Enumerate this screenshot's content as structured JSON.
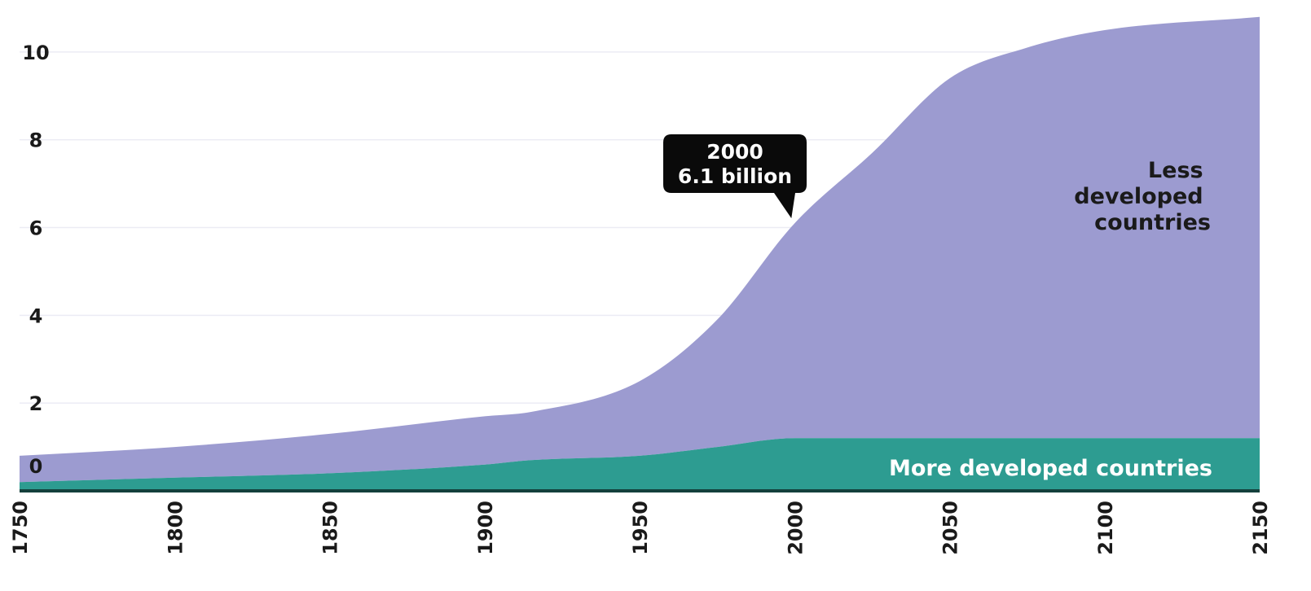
{
  "chart_data": {
    "type": "area",
    "stacked": true,
    "x": [
      1750,
      1800,
      1850,
      1900,
      1915,
      1950,
      1975,
      2000,
      2025,
      2050,
      2075,
      2100,
      2150
    ],
    "series": [
      {
        "name": "More developed countries",
        "values": [
          0.2,
          0.3,
          0.4,
          0.6,
          0.7,
          0.8,
          1.0,
          1.2,
          1.2,
          1.2,
          1.2,
          1.2,
          1.2
        ],
        "color": "#2d9c91"
      },
      {
        "name": "Less developed countries",
        "values": [
          0.6,
          0.7,
          0.9,
          1.1,
          1.1,
          1.7,
          2.9,
          4.9,
          6.5,
          8.2,
          8.9,
          9.3,
          9.6
        ],
        "color": "#9c9bd0"
      }
    ],
    "series_labels": {
      "less_developed": [
        "Less",
        "developed",
        "countries"
      ],
      "more_developed": "More developed countries"
    },
    "xticks": [
      1750,
      1800,
      1850,
      1900,
      1950,
      2000,
      2050,
      2100,
      2150
    ],
    "yticks": [
      0,
      2,
      4,
      6,
      8,
      10
    ],
    "xlim": [
      1750,
      2150
    ],
    "ylim": [
      0,
      11
    ],
    "grid": true,
    "annotation": {
      "x": 2000,
      "y": 6.1,
      "lines": [
        "2000",
        "6.1 billion"
      ]
    }
  }
}
